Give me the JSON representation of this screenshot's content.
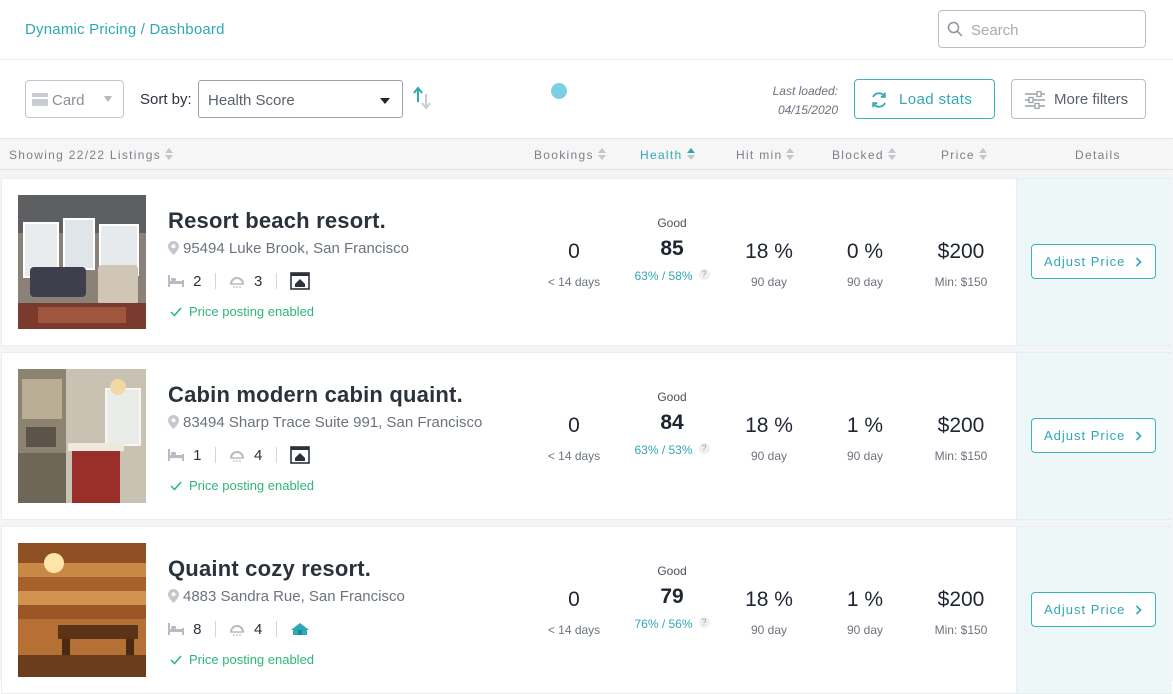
{
  "header": {
    "breadcrumb": "Dynamic Pricing / Dashboard",
    "search_placeholder": "Search"
  },
  "toolbar": {
    "view_mode": "Card",
    "sort_by_label": "Sort by:",
    "sort_value": "Health Score",
    "last_loaded_label": "Last loaded:",
    "last_loaded_date": "04/15/2020",
    "load_stats_label": "Load stats",
    "more_filters_label": "More filters"
  },
  "columns": {
    "showing": "Showing 22/22 Listings",
    "bookings": "Bookings",
    "health": "Health",
    "hit_min": "Hit min",
    "blocked": "Blocked",
    "price": "Price",
    "details": "Details"
  },
  "colors": {
    "accent": "#2fa8b6",
    "success": "#2eb57c",
    "text_dark": "#2b323c"
  },
  "listings": [
    {
      "name": "Resort beach resort.",
      "address": "95494 Luke Brook, San Francisco",
      "beds": "2",
      "baths": "3",
      "type_icon": "house-icon",
      "posting": "Price posting enabled",
      "bookings": "0",
      "bookings_sub": "< 14 days",
      "health_tag": "Good",
      "health_score": "85",
      "health_ratio": "63% / 58%",
      "hit_min": "18 %",
      "hit_min_sub": "90 day",
      "blocked": "0 %",
      "blocked_sub": "90 day",
      "price": "$200",
      "price_min": "Min: $150",
      "adjust_label": "Adjust Price"
    },
    {
      "name": "Cabin modern cabin quaint.",
      "address": "83494 Sharp Trace Suite 991, San Francisco",
      "beds": "1",
      "baths": "4",
      "type_icon": "house-icon",
      "posting": "Price posting enabled",
      "bookings": "0",
      "bookings_sub": "< 14 days",
      "health_tag": "Good",
      "health_score": "84",
      "health_ratio": "63% / 53%",
      "hit_min": "18 %",
      "hit_min_sub": "90 day",
      "blocked": "1 %",
      "blocked_sub": "90 day",
      "price": "$200",
      "price_min": "Min: $150",
      "adjust_label": "Adjust Price"
    },
    {
      "name": "Quaint cozy resort.",
      "address": "4883 Sandra Rue, San Francisco",
      "beds": "8",
      "baths": "4",
      "type_icon": "villa-icon",
      "posting": "Price posting enabled",
      "bookings": "0",
      "bookings_sub": "< 14 days",
      "health_tag": "Good",
      "health_score": "79",
      "health_ratio": "76% / 56%",
      "hit_min": "18 %",
      "hit_min_sub": "90 day",
      "blocked": "1 %",
      "blocked_sub": "90 day",
      "price": "$200",
      "price_min": "Min: $150",
      "adjust_label": "Adjust Price"
    }
  ]
}
